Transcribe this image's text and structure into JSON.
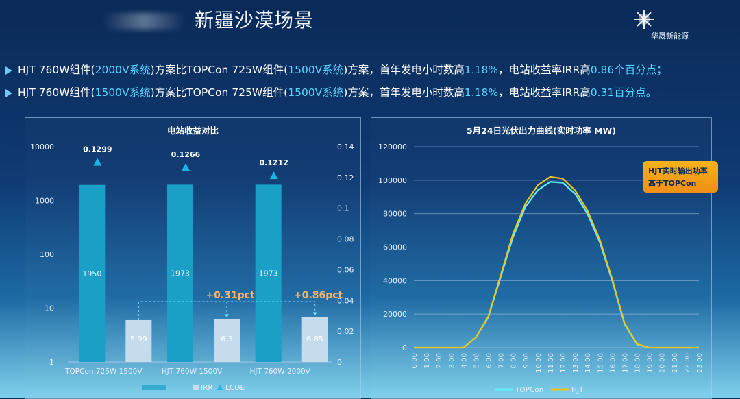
{
  "header": {
    "title": "新疆沙漠场景",
    "logo_text": "华晟新能源"
  },
  "bullets": [
    {
      "p1": "HJT 760W组件(",
      "h1": "2000V系统",
      "p2": ")方案比TOPCon 725W组件(",
      "h2": "1500V系统",
      "p3": ")方案，首年发电小时数高",
      "h3": "1.18%",
      "p4": "，电站收益率IRR高",
      "h4": "0.86个百分点；"
    },
    {
      "p1": "HJT 760W组件(",
      "h1": "1500V系统",
      "p2": ")方案比TOPCon 725W组件(",
      "h2": "1500V系统",
      "p3": ")方案，首年发电小时数高",
      "h3": "1.18%",
      "p4": "，电站收益率IRR高",
      "h4": "0.31百分点。"
    }
  ],
  "colors": {
    "accent": "#55d7ff",
    "bar_main": "#1a9fc7",
    "bar_irr": "#c6dced",
    "lcoe": "#1fb3e5",
    "topcon": "#5ff0ff",
    "hjt": "#f0c419",
    "delta": "#f6b76a",
    "callout": "#f4a518"
  },
  "chart_data": [
    {
      "type": "bar",
      "title": "电站收益对比",
      "categories": [
        "TOPCon  725W  1500V",
        "HJT  760W  1500V",
        "HJT  760W  2000V"
      ],
      "y_left": {
        "scale": "log",
        "ticks": [
          "1",
          "10",
          "100",
          "1000",
          "10000"
        ]
      },
      "y_right": {
        "range": [
          0,
          0.14
        ],
        "ticks": [
          "0",
          "0.02",
          "0.04",
          "0.06",
          "0.08",
          "0.1",
          "0.12",
          "0.14"
        ]
      },
      "series": [
        {
          "name": "",
          "values": [
            1950,
            1973,
            1973
          ],
          "labels": [
            "1950",
            "1973",
            "1973"
          ]
        },
        {
          "name": "IRR",
          "values": [
            5.99,
            6.3,
            6.85
          ],
          "labels": [
            "5.99",
            "6.3",
            "6.85"
          ]
        },
        {
          "name": "LCOE",
          "values": [
            0.1299,
            0.1266,
            0.1212
          ],
          "labels": [
            "0.1299",
            "0.1266",
            "0.1212"
          ]
        }
      ],
      "annotations": [
        "+0.31pct",
        "+0.86pct"
      ]
    },
    {
      "type": "line",
      "title": "5月24日光伏出力曲线(实时功率 MW)",
      "x": [
        "0:00",
        "1:00",
        "2:00",
        "3:00",
        "4:00",
        "5:00",
        "6:00",
        "7:00",
        "8:00",
        "9:00",
        "10:00",
        "11:00",
        "12:00",
        "13:00",
        "14:00",
        "15:00",
        "16:00",
        "17:00",
        "18:00",
        "19:00",
        "20:00",
        "21:00",
        "22:00",
        "23:00"
      ],
      "ylim": [
        0,
        120000
      ],
      "yticks": [
        "0",
        "20000",
        "40000",
        "60000",
        "80000",
        "100000",
        "120000"
      ],
      "series": [
        {
          "name": "TOPCon",
          "values": [
            0,
            0,
            0,
            0,
            0,
            6000,
            18000,
            42000,
            66000,
            84000,
            94000,
            99000,
            98500,
            92000,
            80000,
            63000,
            40000,
            14000,
            2000,
            0,
            0,
            0,
            0,
            0
          ]
        },
        {
          "name": "HJT",
          "values": [
            0,
            0,
            0,
            0,
            0,
            6000,
            18500,
            43000,
            68000,
            86000,
            97000,
            102000,
            101000,
            94000,
            82000,
            64500,
            41000,
            14500,
            2200,
            0,
            0,
            0,
            0,
            0
          ]
        }
      ],
      "callout": {
        "line1": "HJT实时输出功率",
        "line2": "高于TOPCon"
      }
    }
  ]
}
